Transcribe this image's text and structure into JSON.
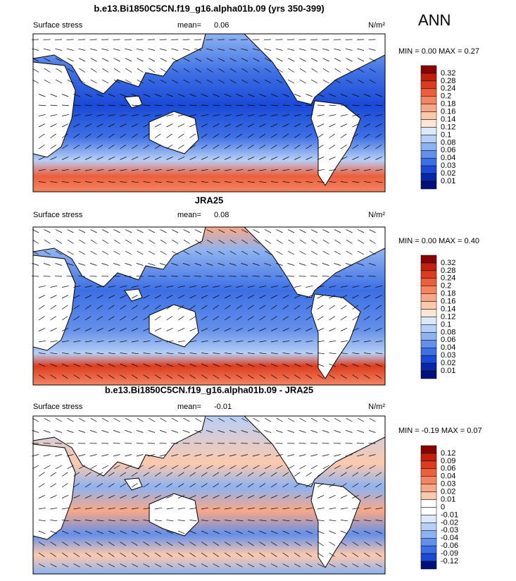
{
  "season": "ANN",
  "panels": [
    {
      "title": "b.e13.Bi1850C5CN.f19_g16.alpha01b.09 (yrs 350-399)",
      "variable": "Surface stress",
      "mean_label": "mean=",
      "mean": "0.06",
      "units": "N/m²",
      "stats": "MIN =  0.00 MAX =  0.27",
      "colorbar": {
        "labels": [
          "0.32",
          "0.28",
          "0.24",
          "0.2",
          "0.18",
          "0.16",
          "0.14",
          "0.12",
          "0.1",
          "0.08",
          "0.06",
          "0.04",
          "0.03",
          "0.02",
          "0.01"
        ],
        "colors": [
          "#8b0000",
          "#c1200c",
          "#dc3c1e",
          "#ec5f3c",
          "#f48562",
          "#f9a887",
          "#fcc9ad",
          "#fde6d6",
          "#dce9fb",
          "#b7cff6",
          "#8eb2f0",
          "#6490ea",
          "#3d6fe4",
          "#1a4ad6",
          "#0627a8",
          "#00107a"
        ]
      }
    },
    {
      "title": "JRA25",
      "variable": "Surface stress",
      "mean_label": "mean=",
      "mean": "0.08",
      "units": "N/m²",
      "stats": "MIN =  0.00 MAX =  0.40",
      "colorbar": {
        "labels": [
          "0.32",
          "0.28",
          "0.24",
          "0.2",
          "0.18",
          "0.16",
          "0.14",
          "0.12",
          "0.1",
          "0.08",
          "0.06",
          "0.04",
          "0.03",
          "0.02",
          "0.01"
        ],
        "colors": [
          "#8b0000",
          "#c1200c",
          "#dc3c1e",
          "#ec5f3c",
          "#f48562",
          "#f9a887",
          "#fcc9ad",
          "#fde6d6",
          "#dce9fb",
          "#b7cff6",
          "#8eb2f0",
          "#6490ea",
          "#3d6fe4",
          "#1a4ad6",
          "#0627a8",
          "#00107a"
        ]
      }
    },
    {
      "title": "b.e13.Bi1850C5CN.f19_g16.alpha01b.09 - JRA25",
      "variable": "Surface stress",
      "mean_label": "mean=",
      "mean": "-0.01",
      "units": "N/m²",
      "stats": "MIN = -0.19 MAX =  0.07",
      "colorbar": {
        "labels": [
          "0.12",
          "0.09",
          "0.06",
          "0.04",
          "0.03",
          "0.02",
          "0.01",
          "0",
          "-0.01",
          "-0.02",
          "-0.03",
          "-0.04",
          "-0.06",
          "-0.09",
          "-0.12"
        ],
        "colors": [
          "#8b0000",
          "#c1200c",
          "#dc3c1e",
          "#ec5f3c",
          "#f48562",
          "#f9a887",
          "#fcc9ad",
          "#ffffff",
          "#ffffff",
          "#dce9fb",
          "#b7cff6",
          "#8eb2f0",
          "#6490ea",
          "#3d6fe4",
          "#1a4ad6",
          "#00107a"
        ]
      }
    }
  ]
}
